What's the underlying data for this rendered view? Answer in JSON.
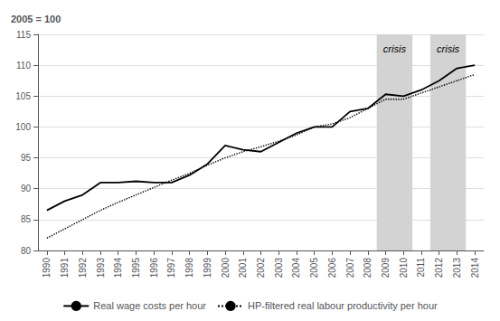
{
  "chart_data": {
    "type": "line",
    "ylabel": "2005 = 100",
    "x": [
      1990,
      1991,
      1992,
      1993,
      1994,
      1995,
      1996,
      1997,
      1998,
      1999,
      2000,
      2001,
      2002,
      2003,
      2004,
      2005,
      2006,
      2007,
      2008,
      2009,
      2010,
      2011,
      2012,
      2013,
      2014
    ],
    "series": [
      {
        "name": "Real wage costs per hour",
        "color": "#000000",
        "line_style": "solid",
        "values": [
          86.5,
          88.0,
          89.0,
          91.0,
          91.0,
          91.2,
          91.0,
          91.0,
          92.2,
          94.0,
          97.0,
          96.3,
          96.0,
          97.5,
          99.0,
          100.0,
          100.0,
          102.5,
          103.0,
          105.3,
          105.0,
          106.0,
          107.5,
          109.5,
          110.0
        ]
      },
      {
        "name": "HP-filtered real labour productivity per hour",
        "color": "#000000",
        "line_style": "dotted",
        "values": [
          82.0,
          83.5,
          85.0,
          86.5,
          87.8,
          89.0,
          90.2,
          91.4,
          92.5,
          93.8,
          95.0,
          96.0,
          96.8,
          97.7,
          98.7,
          100.0,
          100.5,
          101.5,
          103.0,
          104.5,
          104.5,
          105.5,
          106.5,
          107.5,
          108.5
        ]
      }
    ],
    "crisis_zones": [
      {
        "start": 2008.5,
        "end": 2010.5
      },
      {
        "start": 2011.5,
        "end": 2013.5
      }
    ],
    "zone_color": "#d3d3d3",
    "annotations": [
      {
        "x": 2009.5,
        "y": 113.8,
        "text": "crisis"
      },
      {
        "x": 2012.5,
        "y": 113.8,
        "text": "crisis"
      }
    ],
    "xlim": [
      1989.5,
      2014.5
    ],
    "xticks": [
      1990,
      1991,
      1992,
      1993,
      1994,
      1995,
      1996,
      1997,
      1998,
      1999,
      2000,
      2001,
      2002,
      2003,
      2004,
      2005,
      2006,
      2007,
      2008,
      2009,
      2010,
      2011,
      2012,
      2013,
      2014
    ],
    "ylim": [
      80,
      115
    ],
    "yticks": [
      80,
      85,
      90,
      95,
      100,
      105,
      110,
      115
    ],
    "grid": true,
    "legend": "bottom"
  }
}
